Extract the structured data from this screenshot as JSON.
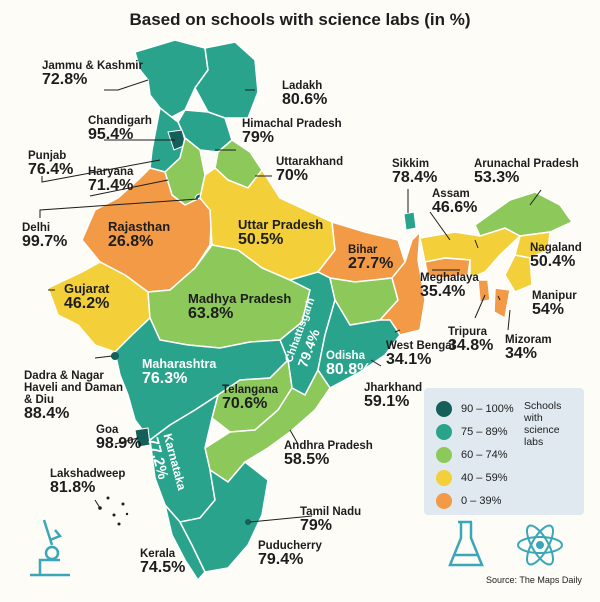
{
  "title": "Based on schools with science labs (in %)",
  "states": [
    {
      "name": "Jammu & Kashmir",
      "value": "72.8%"
    },
    {
      "name": "Ladakh",
      "value": "80.6%"
    },
    {
      "name": "Chandigarh",
      "value": "95.4%"
    },
    {
      "name": "Himachal Pradesh",
      "value": "79%"
    },
    {
      "name": "Punjab",
      "value": "76.4%"
    },
    {
      "name": "Haryana",
      "value": "71.4%"
    },
    {
      "name": "Uttarakhand",
      "value": "70%"
    },
    {
      "name": "Sikkim",
      "value": "78.4%"
    },
    {
      "name": "Arunachal Pradesh",
      "value": "53.3%"
    },
    {
      "name": "Assam",
      "value": "46.6%"
    },
    {
      "name": "Delhi",
      "value": "99.7%"
    },
    {
      "name": "Rajasthan",
      "value": "26.8%"
    },
    {
      "name": "Uttar Pradesh",
      "value": "50.5%"
    },
    {
      "name": "Bihar",
      "value": "27.7%"
    },
    {
      "name": "Nagaland",
      "value": "50.4%"
    },
    {
      "name": "Meghalaya",
      "value": "35.4%"
    },
    {
      "name": "Gujarat",
      "value": "46.2%"
    },
    {
      "name": "Madhya Pradesh",
      "value": "63.8%"
    },
    {
      "name": "Chhattisgarh",
      "value": "79.4%"
    },
    {
      "name": "Manipur",
      "value": "54%"
    },
    {
      "name": "Tripura",
      "value": "34.8%"
    },
    {
      "name": "Mizoram",
      "value": "34%"
    },
    {
      "name": "West Bengal",
      "value": "34.1%"
    },
    {
      "name": "Dadra & Nagar Haveli and Daman & Diu",
      "value": "88.4%"
    },
    {
      "name": "Maharashtra",
      "value": "76.3%"
    },
    {
      "name": "Odisha",
      "value": "80.8%"
    },
    {
      "name": "Jharkhand",
      "value": "59.1%"
    },
    {
      "name": "Telangana",
      "value": "70.6%"
    },
    {
      "name": "Goa",
      "value": "98.9%"
    },
    {
      "name": "Karnataka",
      "value": "77.2%"
    },
    {
      "name": "Andhra Pradesh",
      "value": "58.5%"
    },
    {
      "name": "Lakshadweep",
      "value": "81.8%"
    },
    {
      "name": "Tamil Nadu",
      "value": "79%"
    },
    {
      "name": "Puducherry",
      "value": "79.4%"
    },
    {
      "name": "Kerala",
      "value": "74.5%"
    }
  ],
  "legend": {
    "title": "Schools with science labs",
    "items": [
      {
        "label": "90 – 100%",
        "color": "#155f5a"
      },
      {
        "label": "75 – 89%",
        "color": "#2aa38c"
      },
      {
        "label": "60 – 74%",
        "color": "#8cc85a"
      },
      {
        "label": "40 – 59%",
        "color": "#f3cf3a"
      },
      {
        "label": "0 – 39%",
        "color": "#f29a45"
      }
    ]
  },
  "colors": {
    "band_90_100": "#155f5a",
    "band_75_89": "#2aa38c",
    "band_60_74": "#8cc85a",
    "band_40_59": "#f3cf3a",
    "band_0_39": "#f29a45",
    "icons": "#3aa7b8"
  },
  "icons": [
    "microscope-icon",
    "flask-icon",
    "atom-icon"
  ],
  "source": "Source: The Maps Daily"
}
